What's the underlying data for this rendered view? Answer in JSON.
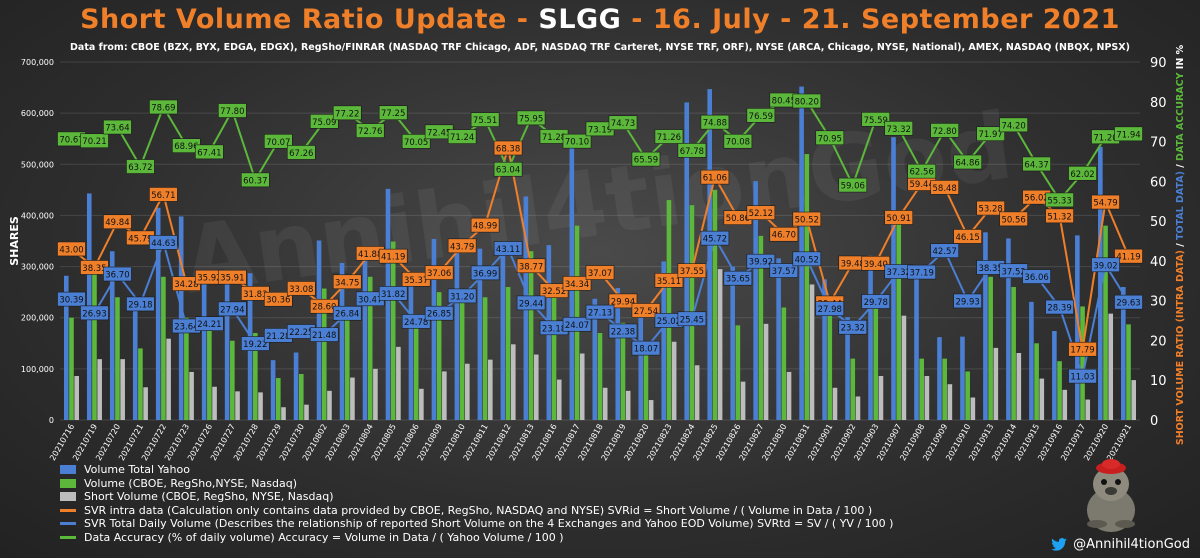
{
  "header": {
    "title_part1": "Short Volume Ratio Update - ",
    "ticker": "SLGG",
    "title_part2": " - 16. July - 21. September 2021",
    "subtitle": "Data from: CBOE (BZX, BYX, EDGA, EDGX), RegSho/FINRAR (NASDAQ TRF Chicago, ADF, NASDAQ TRF Carteret, NYSE TRF, ORF), NYSE (ARCA, Chicago, NYSE, National), AMEX, NASDAQ (NBQX, NPSX)"
  },
  "watermark": "Annihil4tionGod",
  "footer": {
    "handle": "@Annihil4tionGod",
    "icon": "twitter-bird-icon"
  },
  "legend": [
    {
      "label": "Volume Total Yahoo",
      "color": "#4a7fd4",
      "kind": "bar"
    },
    {
      "label": "Volume (CBOE, RegSho,NYSE, Nasdaq)",
      "color": "#5cb83a",
      "kind": "bar"
    },
    {
      "label": "Short  Volume (CBOE, RegSho, NYSE, Nasdaq)",
      "color": "#bdbdbd",
      "kind": "bar"
    },
    {
      "label": "SVR intra data (Calculation only contains data provided by CBOE, RegSho, NASDAQ and NYSE) SVRid = Short Volume / ( Volume in Data / 100 )",
      "color": "#f07f2a",
      "kind": "line"
    },
    {
      "label": "SVR Total Daily Volume (Describes the relationship of reported Short Volume on the 4 Exchanges and Yahoo EOD Volume) SVRtd = SV / ( YV / 100 )",
      "color": "#4a7fd4",
      "kind": "line"
    },
    {
      "label": "Data Accuracy (% of daily volume) Accuracy = Volume in Data / ( Yahoo Volume / 100 )",
      "color": "#5cb83a",
      "kind": "line"
    }
  ],
  "chart_data": {
    "type": "bar",
    "ylabel": "SHARES",
    "y2label_parts": [
      {
        "text": "SHORT VOLUME RATIO (INTRA DATA)",
        "color": "#f07f2a"
      },
      {
        "text": " / ",
        "color": "#ffffff"
      },
      {
        "text": "TOTAL DATA)",
        "color": "#4a7fd4"
      },
      {
        "text": " / ",
        "color": "#ffffff"
      },
      {
        "text": "DATA ACCURACY",
        "color": "#5cb83a"
      },
      {
        "text": " IN %",
        "color": "#ffffff"
      }
    ],
    "ylim": [
      0,
      700000
    ],
    "yticks": [
      "0",
      "100,000",
      "200,000",
      "300,000",
      "400,000",
      "500,000",
      "600,000",
      "700,000"
    ],
    "y2lim": [
      0,
      90
    ],
    "y2ticks": [
      "0",
      "10",
      "20",
      "30",
      "40",
      "50",
      "60",
      "70",
      "80",
      "90"
    ],
    "categories": [
      "20210716",
      "20210719",
      "20210720",
      "20210721",
      "20210722",
      "20210723",
      "20210726",
      "20210727",
      "20210728",
      "20210729",
      "20210730",
      "20210802",
      "20210803",
      "20210804",
      "20210805",
      "20210806",
      "20210809",
      "20210810",
      "20210811",
      "20210812",
      "20210813",
      "20210816",
      "20210817",
      "20210818",
      "20210819",
      "20210820",
      "20210823",
      "20210824",
      "20210825",
      "20210826",
      "20210827",
      "20210830",
      "20210831",
      "20210901",
      "20210902",
      "20210903",
      "20210907",
      "20210908",
      "20210909",
      "20210910",
      "20210913",
      "20210914",
      "20210915",
      "20210916",
      "20210917",
      "20210920",
      "20210921"
    ],
    "series": [
      {
        "name": "Volume Total Yahoo",
        "type": "bar",
        "color": "#4a7fd4",
        "values": [
          282000,
          443000,
          330000,
          237000,
          415000,
          398000,
          268000,
          282000,
          287000,
          117000,
          132000,
          351000,
          307000,
          338000,
          452000,
          266000,
          354000,
          345000,
          335000,
          345000,
          437000,
          342000,
          544000,
          237000,
          258000,
          212000,
          310000,
          621000,
          647000,
          300000,
          467000,
          316000,
          652000,
          275000,
          201000,
          321000,
          553000,
          290000,
          162000,
          163000,
          367000,
          355000,
          231000,
          174000,
          361000,
          534000,
          260000
        ]
      },
      {
        "name": "Volume (CBOE, RegSho,NYSE, Nasdaq)",
        "type": "bar",
        "color": "#5cb83a",
        "values": [
          200000,
          310000,
          240000,
          140000,
          280000,
          200000,
          180000,
          155000,
          170000,
          82000,
          90000,
          257000,
          220000,
          280000,
          349000,
          185000,
          250000,
          250000,
          240000,
          260000,
          330000,
          242000,
          380000,
          170000,
          190000,
          140000,
          430000,
          420000,
          450000,
          185000,
          360000,
          220000,
          520000,
          215000,
          120000,
          240000,
          400000,
          120000,
          120000,
          95000,
          280000,
          260000,
          150000,
          115000,
          222000,
          380000,
          187000
        ]
      },
      {
        "name": "Short  Volume (CBOE, RegSho, NYSE, Nasdaq)",
        "type": "bar",
        "color": "#bdbdbd",
        "values": [
          86000,
          119000,
          119000,
          64000,
          159000,
          94000,
          65000,
          56000,
          54000,
          25000,
          30000,
          57000,
          83000,
          100000,
          143000,
          61000,
          95000,
          110000,
          118000,
          148000,
          128000,
          79000,
          130000,
          63000,
          57000,
          39000,
          153000,
          107000,
          295000,
          75000,
          188000,
          94000,
          265000,
          63000,
          46000,
          86000,
          204000,
          86000,
          70000,
          44000,
          141000,
          131000,
          81000,
          59000,
          40000,
          208000,
          78000
        ]
      },
      {
        "name": "SVR intra data",
        "type": "line",
        "axis": "y2",
        "color": "#f07f2a",
        "values": [
          43.0,
          38.35,
          49.84,
          45.79,
          56.71,
          34.28,
          35.92,
          35.91,
          31.83,
          30.36,
          33.08,
          28.6,
          34.75,
          41.88,
          41.19,
          35.37,
          37.06,
          43.79,
          48.99,
          68.38,
          38.77,
          32.52,
          34.34,
          37.07,
          29.94,
          27.54,
          35.11,
          37.55,
          61.06,
          50.86,
          52.12,
          46.7,
          50.52,
          29.44,
          39.48,
          39.4,
          50.91,
          59.44,
          58.48,
          46.15,
          53.28,
          50.56,
          56.02,
          51.32,
          17.79,
          54.79,
          41.19
        ]
      },
      {
        "name": "SVR Total Daily Volume",
        "type": "line",
        "axis": "y2",
        "color": "#4a7fd4",
        "values": [
          30.39,
          26.93,
          36.7,
          29.18,
          44.63,
          23.64,
          24.21,
          27.94,
          19.22,
          21.28,
          22.25,
          21.48,
          26.84,
          30.47,
          31.82,
          24.78,
          26.85,
          31.2,
          36.99,
          43.11,
          29.44,
          23.18,
          24.07,
          27.13,
          22.38,
          18.07,
          25.02,
          25.45,
          45.72,
          35.65,
          39.92,
          37.57,
          40.52,
          27.98,
          23.32,
          29.78,
          37.32,
          37.19,
          42.57,
          29.93,
          38.35,
          37.52,
          36.06,
          28.39,
          11.03,
          39.02,
          29.63
        ]
      },
      {
        "name": "Data Accuracy",
        "type": "line",
        "axis": "y2",
        "color": "#5cb83a",
        "values": [
          70.67,
          70.21,
          73.64,
          63.72,
          78.69,
          68.96,
          67.41,
          77.8,
          60.37,
          70.07,
          67.26,
          75.09,
          77.22,
          72.76,
          77.25,
          70.05,
          72.45,
          71.24,
          75.51,
          63.04,
          75.95,
          71.28,
          70.1,
          73.19,
          74.73,
          65.59,
          71.26,
          67.78,
          74.88,
          70.08,
          76.59,
          80.45,
          80.2,
          70.95,
          59.06,
          75.59,
          73.32,
          62.56,
          72.8,
          64.86,
          71.97,
          74.2,
          64.37,
          55.33,
          62.02,
          71.2,
          71.94
        ]
      }
    ]
  }
}
